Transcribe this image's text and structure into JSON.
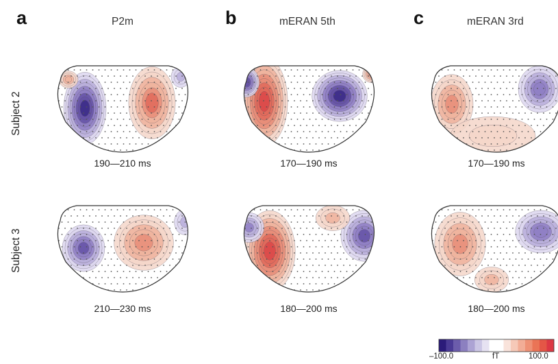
{
  "panels": [
    {
      "letter": "a",
      "title": "P2m"
    },
    {
      "letter": "b",
      "title": "mERAN 5th"
    },
    {
      "letter": "c",
      "title": "mERAN 3rd"
    }
  ],
  "rows": [
    {
      "label": "Subject 2"
    },
    {
      "label": "Subject 3"
    }
  ],
  "time_windows": [
    [
      "190—210 ms",
      "170—190 ms",
      "170—190 ms"
    ],
    [
      "210—230 ms",
      "180—200 ms",
      "180—200 ms"
    ]
  ],
  "colorbar": {
    "min_label": "–100.0",
    "unit_label": "fT",
    "max_label": "100.0",
    "colors": [
      "#2b1b7a",
      "#4a3a95",
      "#6b5cab",
      "#8c80c0",
      "#aca3d4",
      "#cbc6e5",
      "#e6e2f2",
      "#ffffff",
      "#ffffff",
      "#f9e3db",
      "#f6c9b8",
      "#f2ad96",
      "#ee9175",
      "#ea7456",
      "#e45646",
      "#dc3844"
    ]
  },
  "colors": {
    "negative": "#3b2a8a",
    "positive": "#e23a48"
  }
}
